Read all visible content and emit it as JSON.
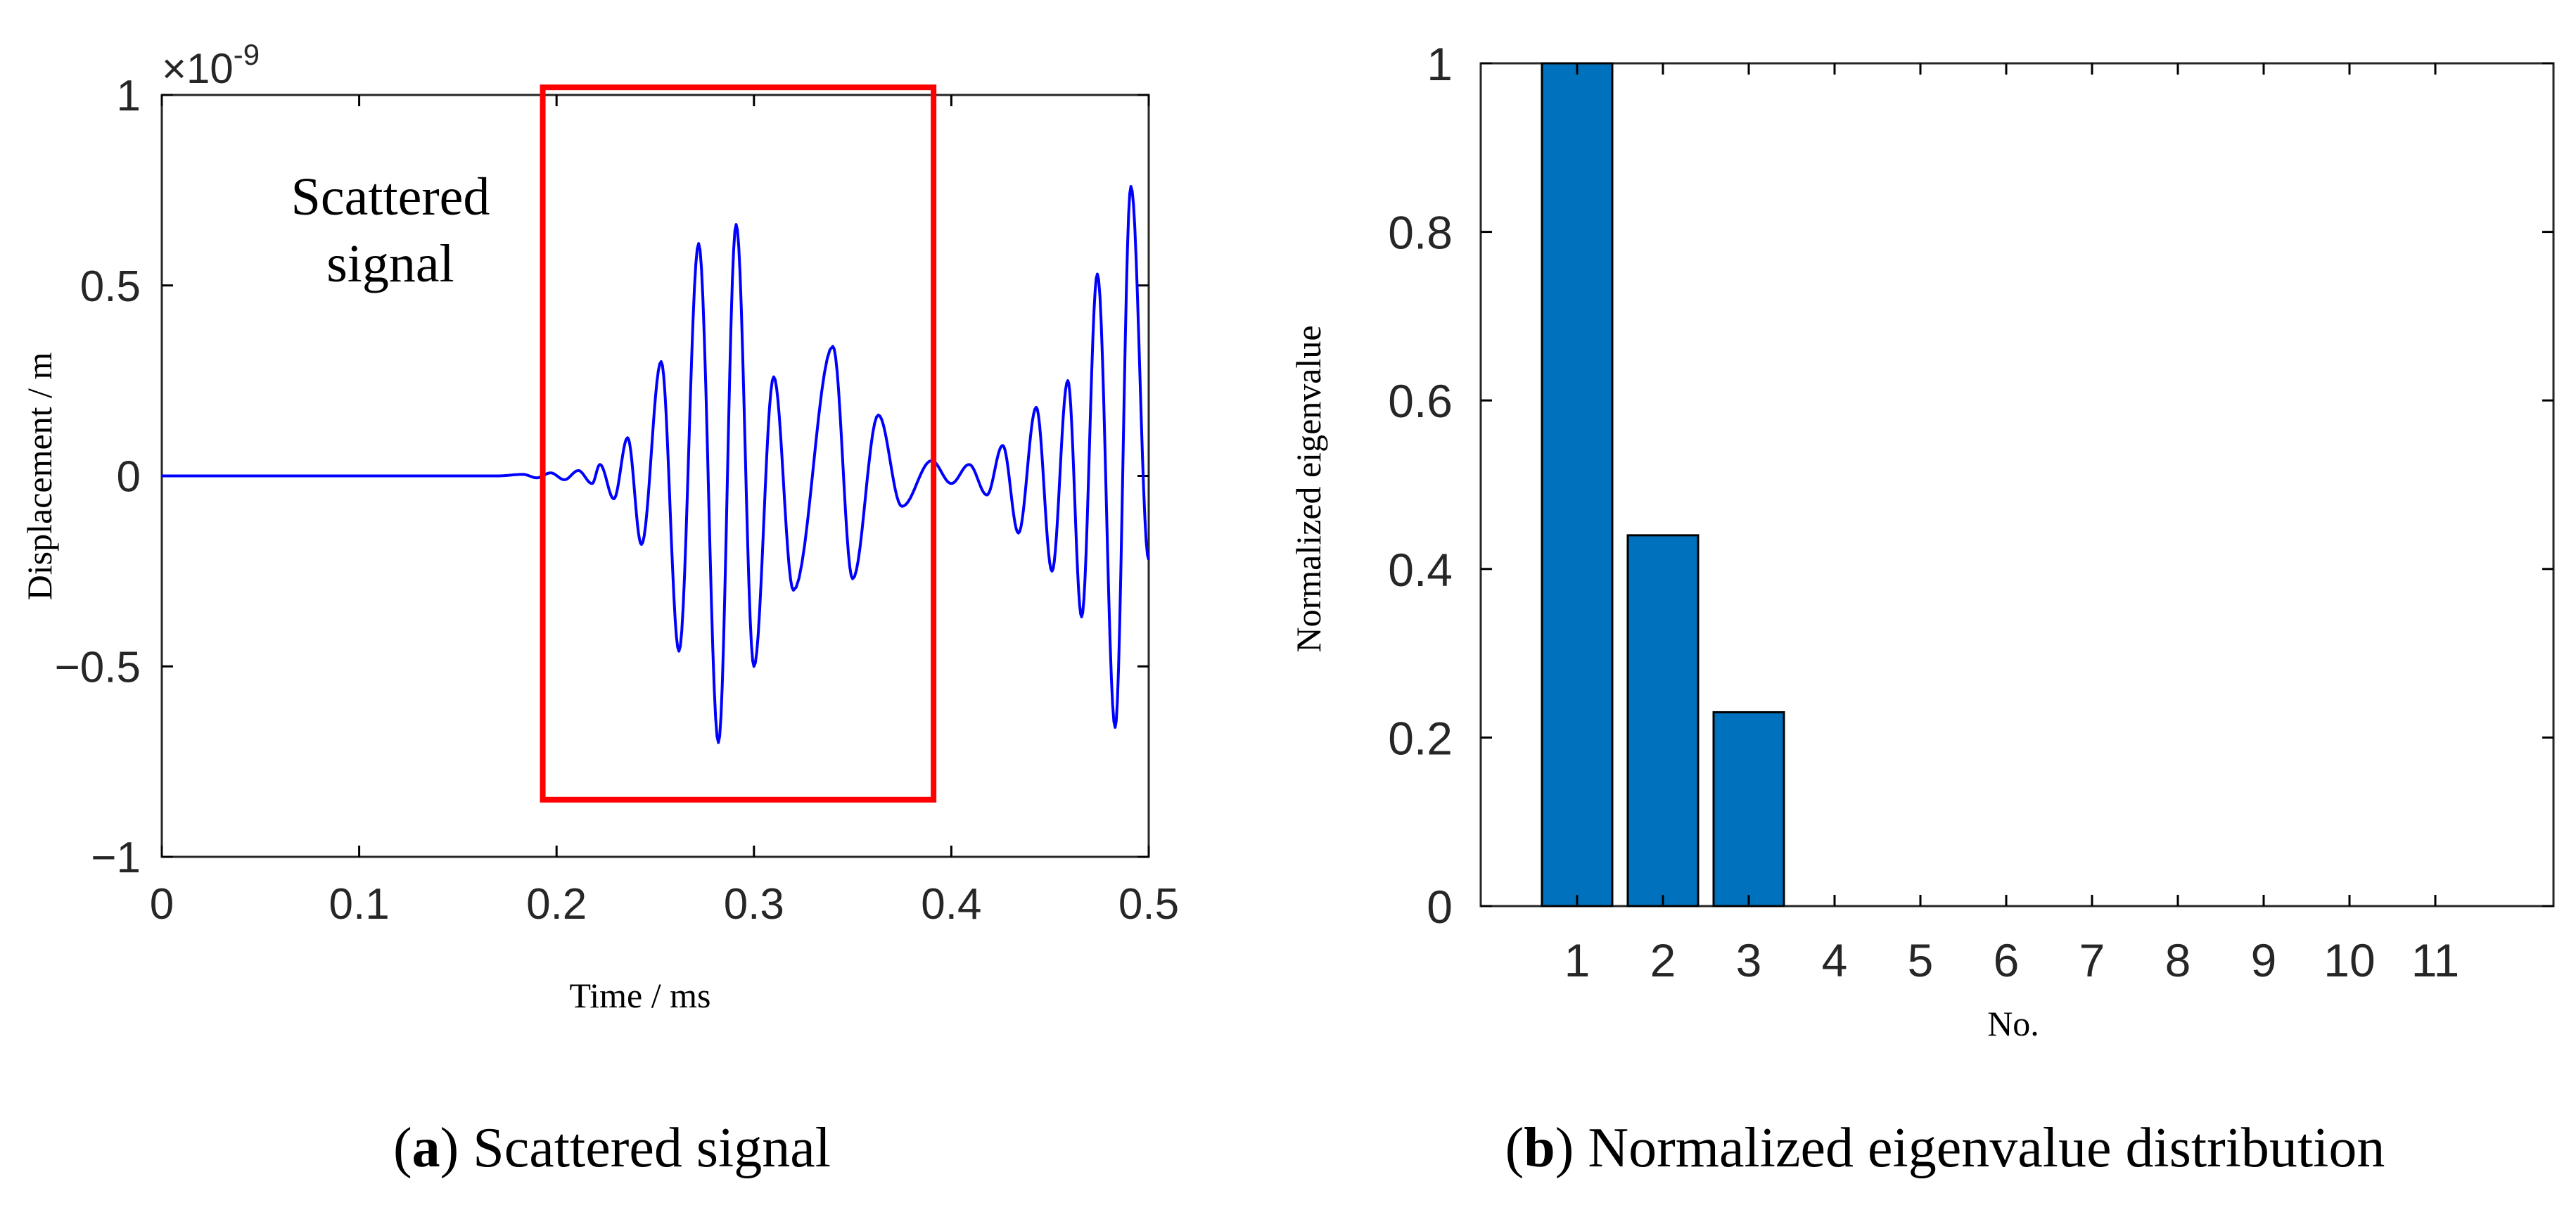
{
  "chart_data": [
    {
      "type": "line",
      "panel_letter": "a",
      "panel_caption": "Scattered signal",
      "xlabel": "Time / ms",
      "ylabel": "Displacement / m",
      "x_ticks": [
        "0",
        "0.1",
        "0.2",
        "0.3",
        "0.4",
        "0.5"
      ],
      "y_ticks": [
        "1",
        "0.5",
        "0",
        "−0.5",
        "−1"
      ],
      "y_exponent_base": "×10",
      "y_exponent_power": "-9",
      "xlim": [
        0,
        0.5
      ],
      "ylim": [
        -1,
        1
      ],
      "annotation": [
        "Scattered",
        "signal"
      ],
      "highlight_box": {
        "x_range": [
          0.193,
          0.391
        ],
        "y_range": [
          -0.85,
          1.02
        ],
        "color": "#ff0000"
      },
      "series": [
        {
          "name": "displacement",
          "color": "#0000ff",
          "signal_start": 0.17,
          "peaks": [
            [
              0.17,
              0.0
            ],
            [
              0.183,
              0.004
            ],
            [
              0.19,
              -0.005
            ],
            [
              0.197,
              0.008
            ],
            [
              0.204,
              -0.01
            ],
            [
              0.211,
              0.014
            ],
            [
              0.218,
              -0.02
            ],
            [
              0.222,
              0.03
            ],
            [
              0.229,
              -0.06
            ],
            [
              0.236,
              0.1
            ],
            [
              0.243,
              -0.18
            ],
            [
              0.253,
              0.3
            ],
            [
              0.262,
              -0.46
            ],
            [
              0.272,
              0.61
            ],
            [
              0.282,
              -0.7
            ],
            [
              0.291,
              0.66
            ],
            [
              0.3,
              -0.5
            ],
            [
              0.31,
              0.26
            ],
            [
              0.32,
              -0.3
            ],
            [
              0.34,
              0.34
            ],
            [
              0.35,
              -0.27
            ],
            [
              0.363,
              0.16
            ],
            [
              0.375,
              -0.08
            ],
            [
              0.39,
              0.04
            ],
            [
              0.4,
              -0.02
            ],
            [
              0.409,
              0.03
            ],
            [
              0.418,
              -0.05
            ],
            [
              0.426,
              0.08
            ],
            [
              0.434,
              -0.15
            ],
            [
              0.443,
              0.18
            ],
            [
              0.451,
              -0.25
            ],
            [
              0.459,
              0.25
            ],
            [
              0.466,
              -0.37
            ],
            [
              0.474,
              0.53
            ],
            [
              0.483,
              -0.66
            ],
            [
              0.491,
              0.76
            ],
            [
              0.5,
              -0.22
            ]
          ]
        }
      ]
    },
    {
      "type": "bar",
      "panel_letter": "b",
      "panel_caption": "Normalized eigenvalue distribution",
      "xlabel": "No.",
      "ylabel": "Normalized eigenvalue",
      "categories": [
        "1",
        "2",
        "3",
        "4",
        "5",
        "6",
        "7",
        "8",
        "9",
        "10",
        "11"
      ],
      "values": [
        1.0,
        0.44,
        0.23,
        0.0,
        0.0,
        0.0,
        0.0,
        0.0,
        0.0,
        0.0,
        0.0
      ],
      "y_ticks": [
        "0",
        "0.2",
        "0.4",
        "0.6",
        "0.8",
        "1"
      ],
      "ylim": [
        0,
        1
      ],
      "bar_color": "#0072bd"
    }
  ]
}
